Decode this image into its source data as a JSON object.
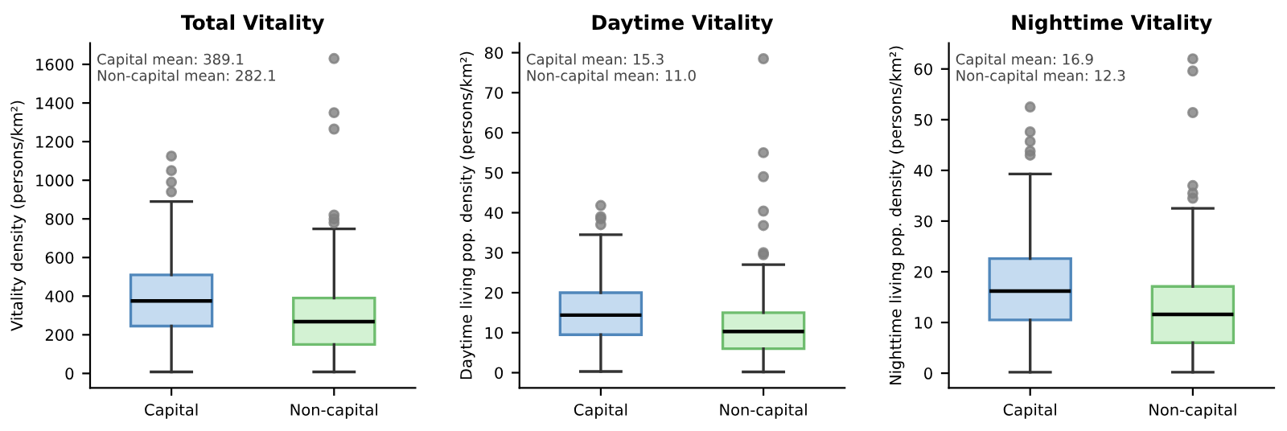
{
  "chart_data": [
    {
      "type": "box",
      "title": "Total Vitality",
      "ylabel": "Vitality density (persons/km²)",
      "categories": [
        "Capital",
        "Non-capital"
      ],
      "colors": [
        "#c5dbf0",
        "#d3f2d3"
      ],
      "boxes": [
        {
          "low": 8,
          "q1": 245,
          "median": 375,
          "q3": 510,
          "high": 890,
          "outliers": [
            940,
            990,
            1050,
            1125
          ]
        },
        {
          "low": 8,
          "q1": 150,
          "median": 268,
          "q3": 390,
          "high": 748,
          "outliers": [
            780,
            800,
            820,
            1265,
            1350,
            1630
          ]
        }
      ],
      "ylim": [
        -75,
        1710
      ],
      "yticks": [
        0,
        200,
        400,
        600,
        800,
        1000,
        1200,
        1400,
        1600
      ],
      "grid": false,
      "annotations": [
        "Capital mean: 389.1",
        "Non-capital mean: 282.1"
      ]
    },
    {
      "type": "box",
      "title": "Daytime Vitality",
      "ylabel": "Daytime living pop. density (persons/km²)",
      "categories": [
        "Capital",
        "Non-capital"
      ],
      "colors": [
        "#c5dbf0",
        "#d3f2d3"
      ],
      "boxes": [
        {
          "low": 0.3,
          "q1": 9.5,
          "median": 14.4,
          "q3": 20,
          "high": 34.5,
          "outliers": [
            37,
            38.5,
            39,
            41.8
          ]
        },
        {
          "low": 0.2,
          "q1": 6,
          "median": 10.3,
          "q3": 15,
          "high": 27,
          "outliers": [
            29.5,
            30,
            36.8,
            40.4,
            49,
            55,
            78.5
          ]
        }
      ],
      "ylim": [
        -3.8,
        82.4
      ],
      "yticks": [
        0,
        10,
        20,
        30,
        40,
        50,
        60,
        70,
        80
      ],
      "grid": false,
      "annotations": [
        "Capital mean: 15.3",
        "Non-capital mean: 11.0"
      ]
    },
    {
      "type": "box",
      "title": "Nighttime Vitality",
      "ylabel": "Nighttime living pop. density (persons/km²)",
      "categories": [
        "Capital",
        "Non-capital"
      ],
      "colors": [
        "#c5dbf0",
        "#d3f2d3"
      ],
      "boxes": [
        {
          "low": 0.2,
          "q1": 10.5,
          "median": 16.2,
          "q3": 22.6,
          "high": 39.3,
          "outliers": [
            43,
            43.8,
            45.7,
            47.6,
            52.5
          ]
        },
        {
          "low": 0.2,
          "q1": 6,
          "median": 11.6,
          "q3": 17.1,
          "high": 32.5,
          "outliers": [
            34.5,
            35.5,
            37,
            51.4,
            59.6,
            62
          ]
        }
      ],
      "ylim": [
        -2.9,
        65.1
      ],
      "yticks": [
        0,
        10,
        20,
        30,
        40,
        50,
        60
      ],
      "grid": false,
      "annotations": [
        "Capital mean: 16.9",
        "Non-capital mean: 12.3"
      ]
    }
  ]
}
